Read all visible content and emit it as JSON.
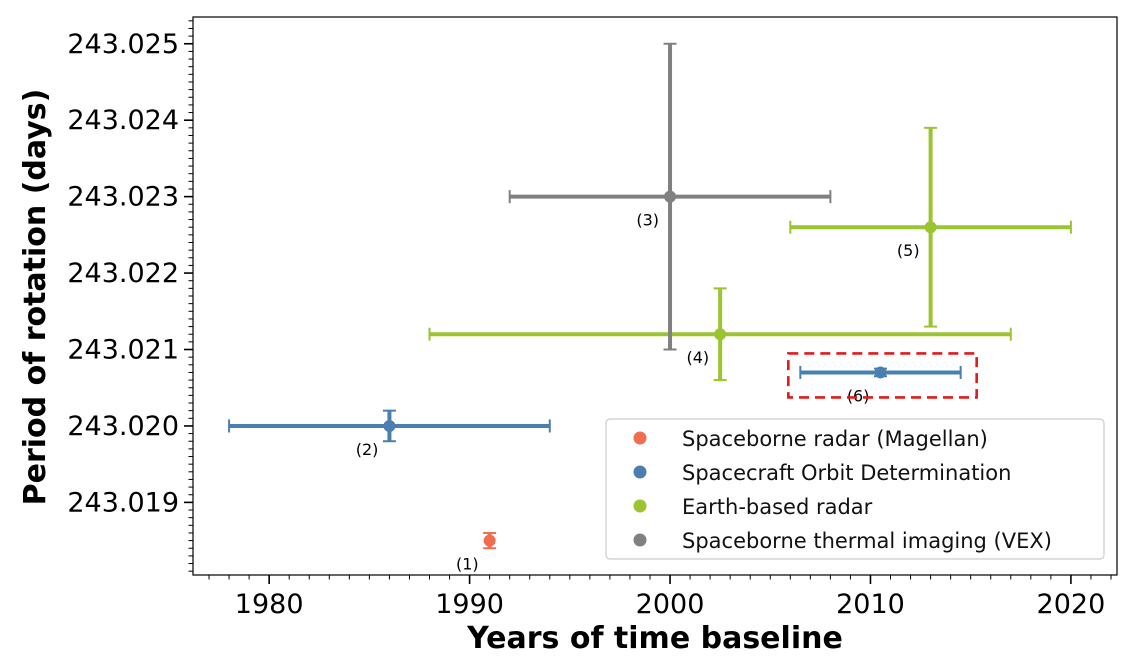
{
  "chart_data": {
    "type": "scatter",
    "title": "",
    "xlabel": "Years of time baseline",
    "ylabel": "Period of rotation (days)",
    "xlim": [
      1976.2,
      2022.3
    ],
    "ylim": [
      243.01805,
      243.02535
    ],
    "x_ticks": [
      1980,
      1990,
      2000,
      2010,
      2020
    ],
    "x_tick_labels": [
      "1980",
      "1990",
      "2000",
      "2010",
      "2020"
    ],
    "y_ticks": [
      243.019,
      243.02,
      243.021,
      243.022,
      243.023,
      243.024,
      243.025
    ],
    "y_tick_labels": [
      "243.019",
      "243.020",
      "243.021",
      "243.022",
      "243.023",
      "243.024",
      "243.025"
    ],
    "grid": false,
    "legend_position": "bottom-right",
    "colors": {
      "magellan": "#f26c4f",
      "orbit": "#4a7fb0",
      "earth": "#9ac531",
      "thermal": "#808080",
      "highlight": "#e01b1b"
    },
    "series": [
      {
        "name": "Spaceborne radar (Magellan)",
        "color_key": "magellan",
        "points": [
          {
            "label": "(1)",
            "x": 1991.0,
            "x_low": 1991.0,
            "x_high": 1991.0,
            "y": 243.0185,
            "y_low": 243.0184,
            "y_high": 243.0186
          }
        ]
      },
      {
        "name": "Spacecraft Orbit Determination",
        "color_key": "orbit",
        "points": [
          {
            "label": "(2)",
            "x": 1986.0,
            "x_low": 1978.0,
            "x_high": 1994.0,
            "y": 243.02,
            "y_low": 243.0198,
            "y_high": 243.0202
          },
          {
            "label": "(6)",
            "x": 2010.5,
            "x_low": 2006.5,
            "x_high": 2014.5,
            "y": 243.0207,
            "y_low": 243.02065,
            "y_high": 243.02075
          }
        ]
      },
      {
        "name": "Earth-based radar",
        "color_key": "earth",
        "points": [
          {
            "label": "(4)",
            "x": 2002.5,
            "x_low": 1988.0,
            "x_high": 2017.0,
            "y": 243.0212,
            "y_low": 243.0206,
            "y_high": 243.0218
          },
          {
            "label": "(5)",
            "x": 2013.0,
            "x_low": 2006.0,
            "x_high": 2020.0,
            "y": 243.0226,
            "y_low": 243.0213,
            "y_high": 243.0239
          }
        ]
      },
      {
        "name": "Spaceborne thermal imaging (VEX)",
        "color_key": "thermal",
        "points": [
          {
            "label": "(3)",
            "x": 2000.0,
            "x_low": 1992.0,
            "x_high": 2008.0,
            "y": 243.023,
            "y_low": 243.021,
            "y_high": 243.025
          }
        ]
      }
    ],
    "highlight_box": {
      "around_point": "(6)",
      "style": "red dashed rectangle"
    }
  }
}
